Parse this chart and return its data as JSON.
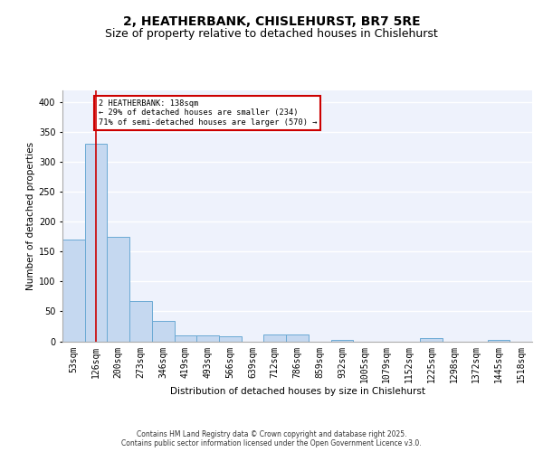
{
  "title1": "2, HEATHERBANK, CHISLEHURST, BR7 5RE",
  "title2": "Size of property relative to detached houses in Chislehurst",
  "xlabel": "Distribution of detached houses by size in Chislehurst",
  "ylabel": "Number of detached properties",
  "categories": [
    "53sqm",
    "126sqm",
    "200sqm",
    "273sqm",
    "346sqm",
    "419sqm",
    "493sqm",
    "566sqm",
    "639sqm",
    "712sqm",
    "786sqm",
    "859sqm",
    "932sqm",
    "1005sqm",
    "1079sqm",
    "1152sqm",
    "1225sqm",
    "1298sqm",
    "1372sqm",
    "1445sqm",
    "1518sqm"
  ],
  "values": [
    170,
    330,
    175,
    68,
    34,
    10,
    10,
    9,
    0,
    11,
    11,
    0,
    3,
    0,
    0,
    0,
    5,
    0,
    0,
    3,
    0
  ],
  "bar_color": "#c5d8f0",
  "bar_edge_color": "#6baad4",
  "vline_x": 1,
  "vline_color": "#cc0000",
  "annotation_text": "2 HEATHERBANK: 138sqm\n← 29% of detached houses are smaller (234)\n71% of semi-detached houses are larger (570) →",
  "annotation_box_color": "#cc0000",
  "background_color": "#eef2fc",
  "grid_color": "#ffffff",
  "ylim": [
    0,
    420
  ],
  "yticks": [
    0,
    50,
    100,
    150,
    200,
    250,
    300,
    350,
    400
  ],
  "footer": "Contains HM Land Registry data © Crown copyright and database right 2025.\nContains public sector information licensed under the Open Government Licence v3.0.",
  "title_fontsize": 10,
  "subtitle_fontsize": 9,
  "axis_label_fontsize": 7.5,
  "tick_fontsize": 7
}
